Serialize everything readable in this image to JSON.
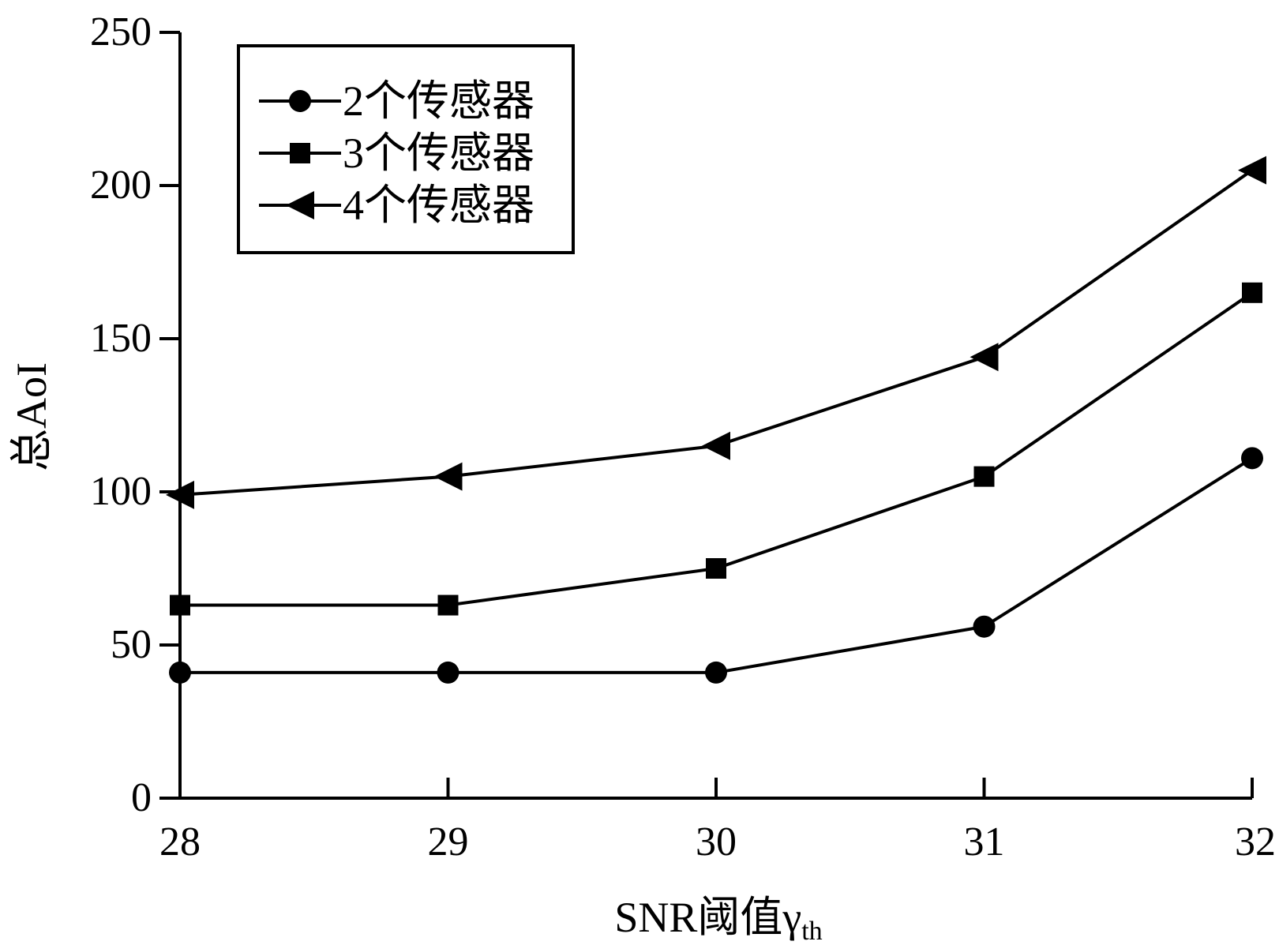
{
  "chart_data": {
    "type": "line",
    "title": "",
    "xlabel": "SNR阈值γ",
    "xlabel_subscript": "th",
    "ylabel": "总AoI",
    "x": [
      28,
      29,
      30,
      31,
      32
    ],
    "x_ticks": [
      "28",
      "29",
      "30",
      "31",
      "32"
    ],
    "y_ticks": [
      "0",
      "50",
      "100",
      "150",
      "200",
      "250"
    ],
    "xlim": [
      28,
      32
    ],
    "ylim": [
      0,
      250
    ],
    "grid": false,
    "legend_position": "top-left",
    "series": [
      {
        "name": "2个传感器",
        "marker": "circle",
        "values": [
          41,
          41,
          41,
          56,
          111
        ]
      },
      {
        "name": "3个传感器",
        "marker": "square",
        "values": [
          63,
          63,
          75,
          105,
          165
        ]
      },
      {
        "name": "4个传感器",
        "marker": "triangle-left",
        "values": [
          99,
          105,
          115,
          144,
          205
        ]
      }
    ],
    "colors": {
      "line": "#000000",
      "background": "#ffffff"
    }
  }
}
